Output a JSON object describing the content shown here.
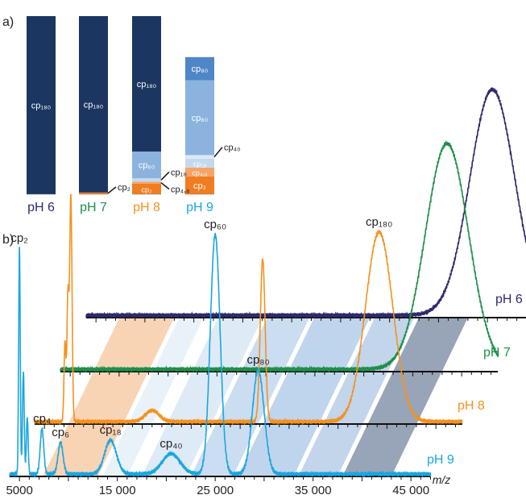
{
  "panel_labels": {
    "a": "a)",
    "b": "b)"
  },
  "colors": {
    "dark_navy": "#1b3660",
    "orange": "#f07d22",
    "cp80_blue": "#4f86c6",
    "cp60_blue": "#8bb3de",
    "cp18_blue": "#c3d9ef",
    "cp46_orange": "#f6a367",
    "ph6": "#2e2a6b",
    "ph7": "#1f8f4a",
    "ph8": "#f39220",
    "ph9": "#1aa6df"
  },
  "chart_data": [
    {
      "type": "bar",
      "stacked": true,
      "panel": "a)",
      "categories": [
        "pH 6",
        "pH 7",
        "pH 8",
        "pH 9"
      ],
      "category_colors": [
        "#2e2a6b",
        "#1f8f4a",
        "#f39220",
        "#1aa6df"
      ],
      "series": [
        {
          "name": "cp₂",
          "color": "#f07d22",
          "values": [
            0,
            1,
            6,
            10
          ]
        },
        {
          "name": "cp₄,₆",
          "color": "#f6a367",
          "values": [
            0,
            0,
            1,
            5
          ]
        },
        {
          "name": "cp₁₈",
          "color": "#c3d9ef",
          "values": [
            0,
            0,
            2,
            5
          ]
        },
        {
          "name": "cp₄₀",
          "color": "#dde9f6",
          "values": [
            0,
            0,
            0,
            2
          ]
        },
        {
          "name": "cp₆₀",
          "color": "#8bb3de",
          "values": [
            0,
            0,
            15,
            42
          ]
        },
        {
          "name": "cp₈₀",
          "color": "#4f86c6",
          "values": [
            0,
            0,
            0,
            13
          ]
        },
        {
          "name": "cp₁₈₀",
          "color": "#1b3660",
          "values": [
            100,
            99,
            76,
            0
          ]
        }
      ],
      "ylim": [
        0,
        100
      ],
      "bar_labels": [
        {
          "bar": 0,
          "text": "cp₁₈₀"
        },
        {
          "bar": 1,
          "text": "cp₁₈₀"
        },
        {
          "bar": 2,
          "text": "cp₁₈₀"
        },
        {
          "bar": 2,
          "text": "cp₆₀"
        },
        {
          "bar": 2,
          "text": "cp₂"
        },
        {
          "bar": 3,
          "text": "cp₈₀"
        },
        {
          "bar": 3,
          "text": "cp₆₀"
        },
        {
          "bar": 3,
          "text": "cp₁₈"
        },
        {
          "bar": 3,
          "text": "cp₄,₆"
        },
        {
          "bar": 3,
          "text": "cp₂"
        }
      ],
      "callouts": [
        {
          "bar": 1,
          "text": "cp₂"
        },
        {
          "bar": 2,
          "text": "cp₁₈"
        },
        {
          "bar": 2,
          "text": "cp₄,₆"
        },
        {
          "bar": 3,
          "text": "cp₄₀"
        }
      ]
    },
    {
      "type": "line",
      "panel": "b)",
      "xlabel": "m/z",
      "xlim": [
        4000,
        50000
      ],
      "xticks": [
        5000,
        15000,
        25000,
        35000,
        45000
      ],
      "xtick_labels": [
        "5000",
        "15 000",
        "25 000",
        "35 000",
        "45 000"
      ],
      "series": [
        {
          "name": "pH 6",
          "color": "#2e2a6b",
          "peaks": [
            {
              "label": "",
              "center": 45500,
              "height": 1.0,
              "width": 2300
            }
          ]
        },
        {
          "name": "pH 7",
          "color": "#1f8f4a",
          "peaks": [
            {
              "label": "",
              "center": 43500,
              "height": 1.0,
              "width": 2200
            }
          ]
        },
        {
          "name": "pH 8",
          "color": "#f39220",
          "peaks": [
            {
              "label": "",
              "center": 7700,
              "height": 1.0,
              "width": 120
            },
            {
              "label": "",
              "center": 7400,
              "height": 0.55,
              "width": 100
            },
            {
              "label": "",
              "center": 7100,
              "height": 0.35,
              "width": 100
            },
            {
              "label": "",
              "center": 16000,
              "height": 0.05,
              "width": 700
            },
            {
              "label": "",
              "center": 27300,
              "height": 0.72,
              "width": 250
            },
            {
              "label": "cp₁₈₀",
              "center": 39200,
              "height": 0.84,
              "width": 1400
            }
          ]
        },
        {
          "name": "pH 9",
          "color": "#1aa6df",
          "peaks": [
            {
              "label": "cp₂",
              "center": 5000,
              "height": 1.0,
              "width": 80
            },
            {
              "label": "",
              "center": 5400,
              "height": 0.45,
              "width": 90
            },
            {
              "label": "",
              "center": 5800,
              "height": 0.25,
              "width": 90
            },
            {
              "label": "cp₄",
              "center": 7300,
              "height": 0.2,
              "width": 180
            },
            {
              "label": "cp₆",
              "center": 9200,
              "height": 0.14,
              "width": 250
            },
            {
              "label": "cp₁₈",
              "center": 14300,
              "height": 0.15,
              "width": 600
            },
            {
              "label": "cp₄₀",
              "center": 20500,
              "height": 0.09,
              "width": 900
            },
            {
              "label": "cp₆₀",
              "center": 25000,
              "height": 1.06,
              "width": 500
            },
            {
              "label": "cp₈₀",
              "center": 29400,
              "height": 0.46,
              "width": 600
            }
          ]
        }
      ]
    }
  ]
}
